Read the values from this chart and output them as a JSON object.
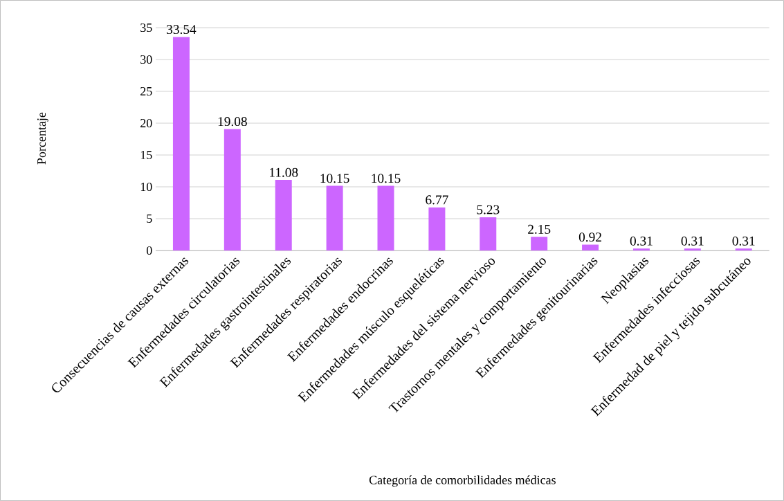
{
  "chart_data": {
    "type": "bar",
    "xlabel": "Categoría de comorbilidades médicas",
    "ylabel": "Porcentaje",
    "categories": [
      "Consecuencias de causas externas",
      "Enfermedades circulatorias",
      "Enfermedades gastrointestinales",
      "Enfermedades respiratorias",
      "Enfermedades endocrinas",
      "Enfermedades músculo esqueléticas",
      "Enfermedades del sistema nervioso",
      "Trastornos mentales y comportamiento",
      "Enfermedades genitourinarias",
      "Neoplasias",
      "Enfermedades infecciosas",
      "Enfermedad de piel y tejido subcutáneo"
    ],
    "values": [
      33.54,
      19.08,
      11.08,
      10.15,
      10.15,
      6.77,
      5.23,
      2.15,
      0.92,
      0.31,
      0.31,
      0.31
    ],
    "color": "#cc66ff",
    "ylim": [
      0,
      35
    ],
    "yticks": [
      0,
      5,
      10,
      15,
      20,
      25,
      30,
      35
    ],
    "grid": "y",
    "data_labels": true
  }
}
